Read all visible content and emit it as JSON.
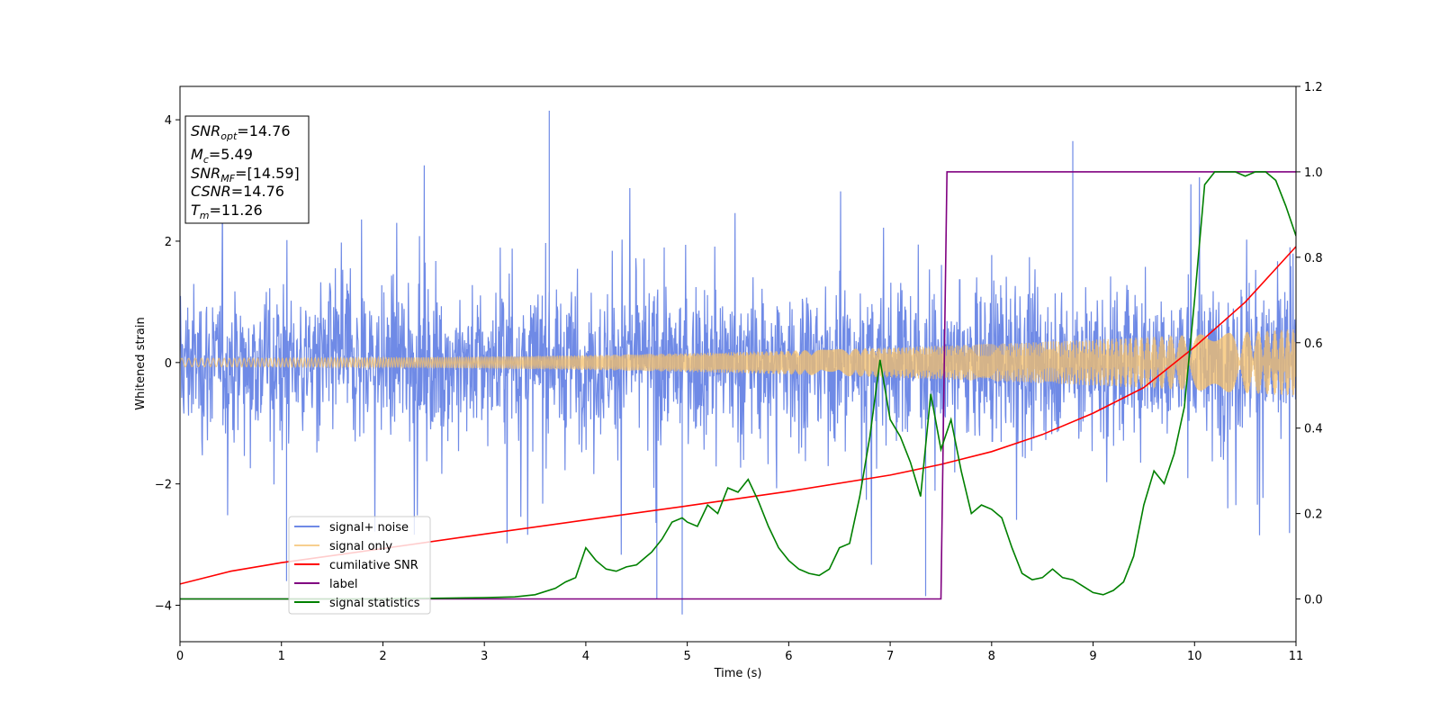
{
  "chart_data": {
    "type": "line",
    "title": "",
    "xlabel": "Time (s)",
    "ylabel": "Whitened strain",
    "xlim": [
      0,
      11
    ],
    "ylim_left": [
      -4.6,
      4.55
    ],
    "ylim_right": [
      -0.1,
      1.2
    ],
    "x_ticks": [
      0,
      1,
      2,
      3,
      4,
      5,
      6,
      7,
      8,
      9,
      10,
      11
    ],
    "y_ticks_left": [
      -4,
      -2,
      0,
      2,
      4
    ],
    "y_ticks_right": [
      0.0,
      0.2,
      0.4,
      0.6,
      0.8,
      1.0,
      1.2
    ],
    "grid": false,
    "legend_position": "lower-left",
    "info_box": {
      "lines": [
        {
          "sym": "SNR",
          "sub": "opt",
          "val": "=14.76"
        },
        {
          "sym": "M",
          "sub": "c",
          "val": "=5.49"
        },
        {
          "sym": "SNR",
          "sub": "MF",
          "val": "=[14.59]"
        },
        {
          "sym": "CSNR",
          "sub": "",
          "val": "=14.76"
        },
        {
          "sym": "T",
          "sub": "m",
          "val": "=11.26"
        }
      ]
    },
    "series": [
      {
        "name": "signal+ noise",
        "axis": "left",
        "color": "#6f8ae6",
        "kind": "noise",
        "envelope_min": [
          -2.9,
          -3.5,
          -2.8
        ],
        "envelope_max": [
          2.9,
          3.7,
          3.4
        ],
        "spikes": [
          {
            "x": 3.64,
            "y": 4.15
          },
          {
            "x": 4.95,
            "y": -4.15
          },
          {
            "x": 4.7,
            "y": -3.9
          },
          {
            "x": 8.8,
            "y": 3.65
          },
          {
            "x": 7.35,
            "y": -3.85
          },
          {
            "x": 1.05,
            "y": -3.6
          }
        ]
      },
      {
        "name": "signal only",
        "axis": "left",
        "color": "#f5c06a",
        "kind": "chirp",
        "amplitude_start": 0.07,
        "amplitude_end": 0.55
      },
      {
        "name": "cumilative SNR",
        "axis": "right",
        "color": "#ff0000",
        "x": [
          0,
          0.5,
          1,
          2,
          3,
          4,
          5,
          6,
          7,
          7.5,
          8,
          8.5,
          9,
          9.5,
          10,
          10.5,
          11
        ],
        "values": [
          0.035,
          0.065,
          0.085,
          0.118,
          0.152,
          0.185,
          0.218,
          0.252,
          0.29,
          0.315,
          0.345,
          0.385,
          0.435,
          0.495,
          0.59,
          0.695,
          0.825
        ]
      },
      {
        "name": "label",
        "axis": "right",
        "color": "#800080",
        "x": [
          0,
          7.5,
          7.56,
          11
        ],
        "values": [
          0.0,
          0.0,
          1.0,
          1.0
        ]
      },
      {
        "name": "signal statistics",
        "axis": "right",
        "color": "#008000",
        "x": [
          0,
          1,
          2,
          3,
          3.3,
          3.5,
          3.7,
          3.8,
          3.9,
          4.0,
          4.1,
          4.2,
          4.3,
          4.4,
          4.5,
          4.6,
          4.65,
          4.75,
          4.85,
          4.95,
          5.0,
          5.1,
          5.2,
          5.3,
          5.4,
          5.5,
          5.6,
          5.7,
          5.8,
          5.9,
          6.0,
          6.1,
          6.2,
          6.3,
          6.4,
          6.5,
          6.6,
          6.7,
          6.8,
          6.9,
          7.0,
          7.1,
          7.2,
          7.3,
          7.4,
          7.5,
          7.6,
          7.7,
          7.8,
          7.9,
          8.0,
          8.1,
          8.2,
          8.3,
          8.4,
          8.5,
          8.6,
          8.7,
          8.8,
          8.9,
          9.0,
          9.1,
          9.2,
          9.3,
          9.4,
          9.5,
          9.6,
          9.7,
          9.8,
          9.9,
          10.0,
          10.1,
          10.2,
          10.3,
          10.4,
          10.5,
          10.6,
          10.7,
          10.8,
          10.9,
          11.0
        ],
        "values": [
          0.0,
          0.0,
          0.0,
          0.003,
          0.005,
          0.01,
          0.025,
          0.04,
          0.05,
          0.12,
          0.09,
          0.07,
          0.065,
          0.075,
          0.08,
          0.1,
          0.11,
          0.14,
          0.18,
          0.19,
          0.18,
          0.17,
          0.22,
          0.2,
          0.26,
          0.25,
          0.28,
          0.23,
          0.17,
          0.12,
          0.09,
          0.07,
          0.06,
          0.055,
          0.07,
          0.12,
          0.13,
          0.24,
          0.38,
          0.56,
          0.42,
          0.38,
          0.32,
          0.24,
          0.48,
          0.35,
          0.42,
          0.3,
          0.2,
          0.22,
          0.21,
          0.19,
          0.12,
          0.06,
          0.045,
          0.05,
          0.07,
          0.05,
          0.045,
          0.03,
          0.015,
          0.01,
          0.02,
          0.04,
          0.1,
          0.22,
          0.3,
          0.27,
          0.34,
          0.45,
          0.7,
          0.97,
          1.0,
          1.0,
          1.0,
          0.99,
          1.0,
          1.0,
          0.98,
          0.92,
          0.85
        ]
      }
    ]
  }
}
